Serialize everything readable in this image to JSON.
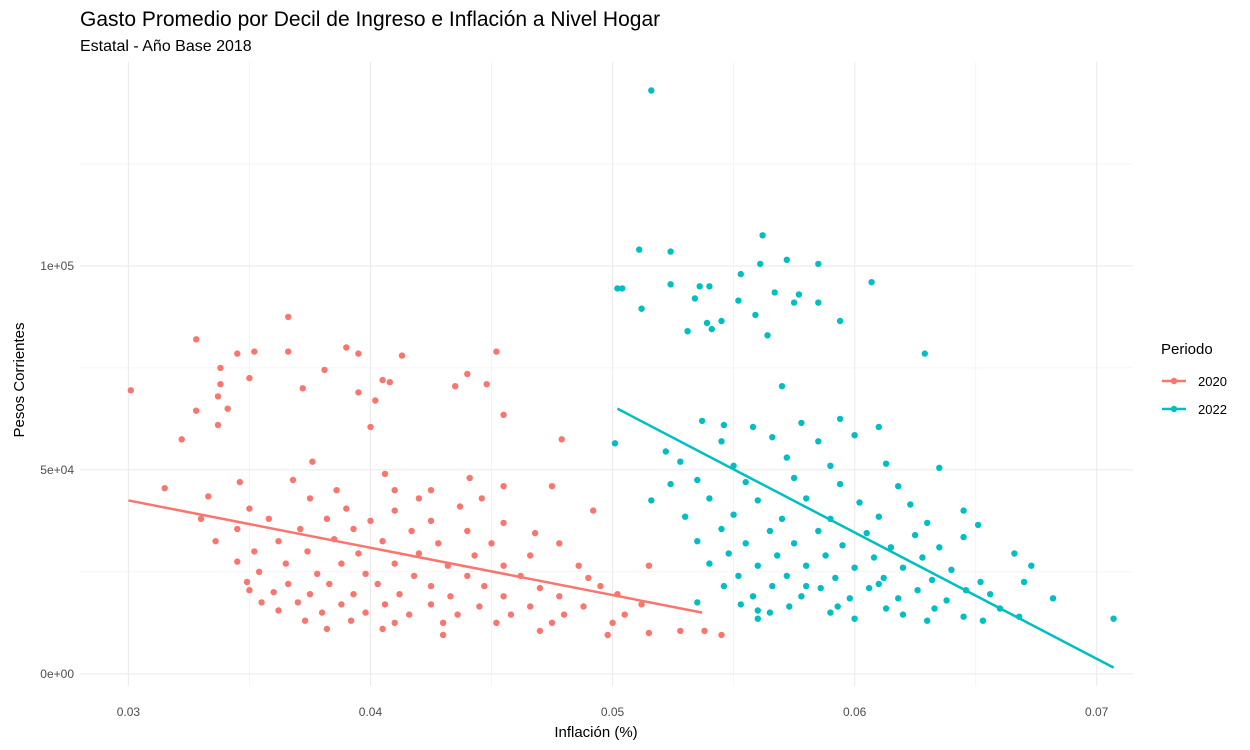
{
  "chart_data": {
    "type": "scatter",
    "title": "Gasto Promedio por Decil de Ingreso e Inflación a Nivel Hogar",
    "subtitle": "Estatal - Año Base 2018",
    "xlabel": "Inflación (%)",
    "ylabel": "Pesos Corrientes",
    "xlim": [
      0.028,
      0.0715
    ],
    "ylim": [
      -3000,
      150000
    ],
    "x_ticks": [
      0.03,
      0.04,
      0.05,
      0.06,
      0.07
    ],
    "x_tick_labels": [
      "0.03",
      "0.04",
      "0.05",
      "0.06",
      "0.07"
    ],
    "y_ticks": [
      0,
      50000,
      100000
    ],
    "y_tick_labels": [
      "0e+00",
      "5e+04",
      "1e+05"
    ],
    "grid": true,
    "legend": {
      "title": "Periodo",
      "position": "right"
    },
    "series": [
      {
        "name": "2020",
        "color": "#F8766D",
        "trend": {
          "x": [
            0.03,
            0.0537
          ],
          "y": [
            42500,
            15000
          ]
        },
        "points": [
          [
            0.0301,
            69500
          ],
          [
            0.0328,
            82000
          ],
          [
            0.0366,
            87500
          ],
          [
            0.039,
            80000
          ],
          [
            0.0395,
            78500
          ],
          [
            0.0345,
            78500
          ],
          [
            0.0352,
            79000
          ],
          [
            0.0366,
            79000
          ],
          [
            0.0452,
            79000
          ],
          [
            0.0413,
            78000
          ],
          [
            0.0338,
            75000
          ],
          [
            0.0381,
            74500
          ],
          [
            0.044,
            73500
          ],
          [
            0.0405,
            72000
          ],
          [
            0.035,
            72500
          ],
          [
            0.0408,
            71500
          ],
          [
            0.0338,
            71000
          ],
          [
            0.0448,
            71000
          ],
          [
            0.0372,
            70000
          ],
          [
            0.0395,
            69000
          ],
          [
            0.0337,
            68000
          ],
          [
            0.0402,
            67000
          ],
          [
            0.0435,
            70500
          ],
          [
            0.0341,
            65000
          ],
          [
            0.0328,
            64500
          ],
          [
            0.0455,
            63500
          ],
          [
            0.0337,
            61000
          ],
          [
            0.04,
            60500
          ],
          [
            0.0322,
            57500
          ],
          [
            0.0479,
            57500
          ],
          [
            0.0376,
            52000
          ],
          [
            0.0406,
            49000
          ],
          [
            0.0441,
            48000
          ],
          [
            0.0368,
            47500
          ],
          [
            0.0346,
            47000
          ],
          [
            0.0315,
            45500
          ],
          [
            0.0386,
            45000
          ],
          [
            0.041,
            45000
          ],
          [
            0.0425,
            45000
          ],
          [
            0.0455,
            46000
          ],
          [
            0.0475,
            46000
          ],
          [
            0.0333,
            43500
          ],
          [
            0.0375,
            43000
          ],
          [
            0.042,
            43000
          ],
          [
            0.0446,
            43000
          ],
          [
            0.035,
            40500
          ],
          [
            0.039,
            40500
          ],
          [
            0.041,
            40000
          ],
          [
            0.0437,
            41000
          ],
          [
            0.0492,
            40000
          ],
          [
            0.033,
            38000
          ],
          [
            0.0358,
            38000
          ],
          [
            0.0382,
            38000
          ],
          [
            0.04,
            37500
          ],
          [
            0.0425,
            37500
          ],
          [
            0.0455,
            37000
          ],
          [
            0.0345,
            35500
          ],
          [
            0.0371,
            35500
          ],
          [
            0.0393,
            35500
          ],
          [
            0.0417,
            35000
          ],
          [
            0.044,
            35000
          ],
          [
            0.0468,
            34500
          ],
          [
            0.0336,
            32500
          ],
          [
            0.0362,
            32500
          ],
          [
            0.0385,
            33000
          ],
          [
            0.0405,
            32500
          ],
          [
            0.0428,
            32000
          ],
          [
            0.045,
            32000
          ],
          [
            0.0478,
            32000
          ],
          [
            0.0352,
            30000
          ],
          [
            0.0374,
            30000
          ],
          [
            0.0395,
            29500
          ],
          [
            0.042,
            29500
          ],
          [
            0.0443,
            29000
          ],
          [
            0.0466,
            29000
          ],
          [
            0.0345,
            27500
          ],
          [
            0.0365,
            27000
          ],
          [
            0.0388,
            27000
          ],
          [
            0.041,
            27000
          ],
          [
            0.0432,
            26500
          ],
          [
            0.0455,
            26500
          ],
          [
            0.0486,
            26500
          ],
          [
            0.0515,
            26500
          ],
          [
            0.0354,
            25000
          ],
          [
            0.0378,
            24500
          ],
          [
            0.0398,
            24500
          ],
          [
            0.0418,
            24000
          ],
          [
            0.044,
            24000
          ],
          [
            0.0462,
            24000
          ],
          [
            0.049,
            23500
          ],
          [
            0.0349,
            22500
          ],
          [
            0.0366,
            22000
          ],
          [
            0.0383,
            22000
          ],
          [
            0.0403,
            22000
          ],
          [
            0.0425,
            21500
          ],
          [
            0.0447,
            21500
          ],
          [
            0.047,
            21000
          ],
          [
            0.0495,
            21500
          ],
          [
            0.036,
            20000
          ],
          [
            0.0375,
            19500
          ],
          [
            0.0393,
            19500
          ],
          [
            0.0412,
            19500
          ],
          [
            0.0433,
            19000
          ],
          [
            0.0455,
            19000
          ],
          [
            0.0478,
            19000
          ],
          [
            0.0502,
            19500
          ],
          [
            0.0355,
            17500
          ],
          [
            0.037,
            17500
          ],
          [
            0.0388,
            17000
          ],
          [
            0.0406,
            17000
          ],
          [
            0.0425,
            17000
          ],
          [
            0.0445,
            16500
          ],
          [
            0.0466,
            16500
          ],
          [
            0.0488,
            16500
          ],
          [
            0.0512,
            17000
          ],
          [
            0.0362,
            15500
          ],
          [
            0.038,
            15000
          ],
          [
            0.0398,
            15000
          ],
          [
            0.0416,
            14500
          ],
          [
            0.0436,
            14500
          ],
          [
            0.0458,
            14500
          ],
          [
            0.048,
            14500
          ],
          [
            0.0505,
            14500
          ],
          [
            0.0373,
            13000
          ],
          [
            0.0392,
            13000
          ],
          [
            0.041,
            12500
          ],
          [
            0.043,
            12500
          ],
          [
            0.0452,
            12500
          ],
          [
            0.0475,
            12500
          ],
          [
            0.05,
            12500
          ],
          [
            0.0382,
            11000
          ],
          [
            0.0405,
            11000
          ],
          [
            0.043,
            9500
          ],
          [
            0.047,
            10500
          ],
          [
            0.0498,
            9500
          ],
          [
            0.0515,
            10000
          ],
          [
            0.0528,
            10500
          ],
          [
            0.0545,
            9500
          ],
          [
            0.0538,
            10500
          ],
          [
            0.035,
            20500
          ]
        ]
      },
      {
        "name": "2022",
        "color": "#00BFC4",
        "trend": {
          "x": [
            0.0502,
            0.0707
          ],
          "y": [
            65000,
            1500
          ]
        },
        "points": [
          [
            0.0516,
            143000
          ],
          [
            0.0562,
            107500
          ],
          [
            0.0511,
            104000
          ],
          [
            0.0524,
            103500
          ],
          [
            0.0572,
            101500
          ],
          [
            0.0561,
            100500
          ],
          [
            0.0585,
            100500
          ],
          [
            0.0553,
            98000
          ],
          [
            0.0502,
            94500
          ],
          [
            0.0504,
            94500
          ],
          [
            0.0524,
            95500
          ],
          [
            0.0536,
            95000
          ],
          [
            0.054,
            95000
          ],
          [
            0.0607,
            96000
          ],
          [
            0.0567,
            93500
          ],
          [
            0.0577,
            93000
          ],
          [
            0.0534,
            92000
          ],
          [
            0.0552,
            91500
          ],
          [
            0.0575,
            91000
          ],
          [
            0.0585,
            91000
          ],
          [
            0.0512,
            89500
          ],
          [
            0.0559,
            88000
          ],
          [
            0.0539,
            86000
          ],
          [
            0.0545,
            86500
          ],
          [
            0.0594,
            86500
          ],
          [
            0.0531,
            84000
          ],
          [
            0.0541,
            84500
          ],
          [
            0.0564,
            83000
          ],
          [
            0.0629,
            78500
          ],
          [
            0.057,
            70500
          ],
          [
            0.0546,
            61000
          ],
          [
            0.0558,
            60500
          ],
          [
            0.0578,
            61500
          ],
          [
            0.0594,
            62500
          ],
          [
            0.061,
            60500
          ],
          [
            0.0537,
            62000
          ],
          [
            0.0501,
            56500
          ],
          [
            0.0522,
            54500
          ],
          [
            0.0545,
            57000
          ],
          [
            0.0566,
            58000
          ],
          [
            0.0585,
            57000
          ],
          [
            0.06,
            58500
          ],
          [
            0.0528,
            52000
          ],
          [
            0.055,
            51000
          ],
          [
            0.0572,
            53000
          ],
          [
            0.059,
            51000
          ],
          [
            0.0613,
            51500
          ],
          [
            0.0635,
            50500
          ],
          [
            0.0535,
            47500
          ],
          [
            0.0555,
            47000
          ],
          [
            0.0575,
            48000
          ],
          [
            0.0594,
            46500
          ],
          [
            0.0618,
            46000
          ],
          [
            0.0524,
            46500
          ],
          [
            0.0516,
            42500
          ],
          [
            0.054,
            43000
          ],
          [
            0.056,
            42500
          ],
          [
            0.058,
            43000
          ],
          [
            0.0602,
            42000
          ],
          [
            0.0623,
            41500
          ],
          [
            0.0645,
            40000
          ],
          [
            0.053,
            38500
          ],
          [
            0.055,
            39000
          ],
          [
            0.057,
            38000
          ],
          [
            0.059,
            38000
          ],
          [
            0.061,
            38500
          ],
          [
            0.063,
            37000
          ],
          [
            0.0651,
            36500
          ],
          [
            0.0545,
            35500
          ],
          [
            0.0565,
            35000
          ],
          [
            0.0585,
            35000
          ],
          [
            0.0605,
            34500
          ],
          [
            0.0625,
            34000
          ],
          [
            0.0645,
            33500
          ],
          [
            0.0535,
            32500
          ],
          [
            0.0555,
            32000
          ],
          [
            0.0575,
            32000
          ],
          [
            0.0595,
            31500
          ],
          [
            0.0615,
            31000
          ],
          [
            0.0635,
            31000
          ],
          [
            0.0548,
            29500
          ],
          [
            0.0568,
            29000
          ],
          [
            0.0588,
            29000
          ],
          [
            0.0608,
            28500
          ],
          [
            0.0628,
            28500
          ],
          [
            0.0666,
            29500
          ],
          [
            0.054,
            27000
          ],
          [
            0.056,
            26500
          ],
          [
            0.058,
            26500
          ],
          [
            0.06,
            26000
          ],
          [
            0.062,
            26000
          ],
          [
            0.064,
            25500
          ],
          [
            0.0673,
            26500
          ],
          [
            0.0552,
            24000
          ],
          [
            0.0572,
            24000
          ],
          [
            0.0592,
            23500
          ],
          [
            0.0612,
            23500
          ],
          [
            0.0632,
            23000
          ],
          [
            0.0652,
            22500
          ],
          [
            0.0546,
            21500
          ],
          [
            0.0566,
            21500
          ],
          [
            0.0586,
            21000
          ],
          [
            0.0606,
            21000
          ],
          [
            0.0626,
            20500
          ],
          [
            0.0646,
            20500
          ],
          [
            0.067,
            22500
          ],
          [
            0.0558,
            19000
          ],
          [
            0.0578,
            19000
          ],
          [
            0.0598,
            18500
          ],
          [
            0.0618,
            18500
          ],
          [
            0.0638,
            18000
          ],
          [
            0.0656,
            19500
          ],
          [
            0.0682,
            18500
          ],
          [
            0.0553,
            17000
          ],
          [
            0.0573,
            16500
          ],
          [
            0.0593,
            16500
          ],
          [
            0.0613,
            16000
          ],
          [
            0.0633,
            16000
          ],
          [
            0.066,
            16000
          ],
          [
            0.0565,
            15000
          ],
          [
            0.059,
            15000
          ],
          [
            0.062,
            14500
          ],
          [
            0.0645,
            14000
          ],
          [
            0.0668,
            14000
          ],
          [
            0.056,
            13500
          ],
          [
            0.06,
            13500
          ],
          [
            0.063,
            13000
          ],
          [
            0.0653,
            13000
          ],
          [
            0.0707,
            13500
          ],
          [
            0.0535,
            17500
          ],
          [
            0.056,
            15500
          ],
          [
            0.058,
            21500
          ],
          [
            0.061,
            22000
          ]
        ]
      }
    ]
  }
}
